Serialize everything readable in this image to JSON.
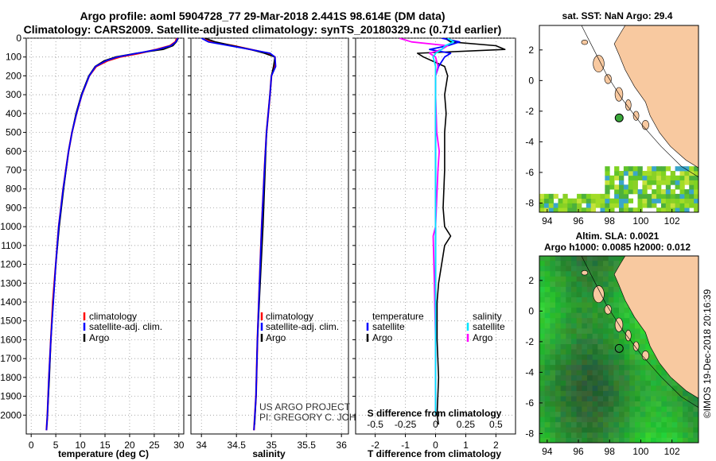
{
  "header": {
    "title_line1": "Argo profile: aoml 5904728_77 29-Mar-2018 2.441S 98.614E (DM data)",
    "title_line2": "Climatology: CARS2009. Satellite-adjusted climatology: synTS_20180329.nc (0.71d earlier)"
  },
  "colors": {
    "climatology": "#ff0000",
    "satellite": "#0000ff",
    "argo": "#000000",
    "sal_satellite": "#00e5ff",
    "sal_argo": "#ff00ff",
    "land": "#f8c9a0"
  },
  "chart_data": [
    {
      "type": "line",
      "id": "temperature",
      "xlabel": "temperature (deg C)",
      "ylabel": "",
      "xlim": [
        -1,
        31
      ],
      "ylim": [
        2100,
        0
      ],
      "xticks": [
        0,
        5,
        10,
        15,
        20,
        25,
        30
      ],
      "yticks": [
        0,
        100,
        200,
        300,
        400,
        500,
        600,
        700,
        800,
        900,
        1000,
        1100,
        1200,
        1300,
        1400,
        1500,
        1600,
        1700,
        1800,
        1900,
        2000
      ],
      "legend": [
        "climatology",
        "satellite-adj. clim.",
        "Argo"
      ],
      "series": [
        {
          "name": "climatology",
          "depth": [
            0,
            20,
            40,
            60,
            80,
            100,
            120,
            150,
            200,
            300,
            400,
            500,
            600,
            800,
            1000,
            1200,
            1400,
            1600,
            1800,
            2000,
            2080
          ],
          "values": [
            29.6,
            29.3,
            28.2,
            25.5,
            22.0,
            18.0,
            15.5,
            13.2,
            11.8,
            10.3,
            9.2,
            8.3,
            7.6,
            6.5,
            5.6,
            5.0,
            4.4,
            4.0,
            3.6,
            3.3,
            3.1
          ]
        },
        {
          "name": "satellite",
          "depth": [
            0,
            20,
            40,
            60,
            80,
            100,
            120,
            150,
            200,
            300,
            400,
            500,
            600,
            800,
            1000,
            1200,
            1400,
            1600,
            1800,
            2000,
            2080
          ],
          "values": [
            29.8,
            29.4,
            28.4,
            25.7,
            21.5,
            17.5,
            15.2,
            13.1,
            11.8,
            10.3,
            9.2,
            8.3,
            7.6,
            6.5,
            5.6,
            5.0,
            4.5,
            4.0,
            3.6,
            3.3,
            3.1
          ]
        },
        {
          "name": "argo",
          "depth": [
            0,
            20,
            40,
            60,
            80,
            100,
            120,
            150,
            200,
            300,
            400,
            500,
            600,
            800,
            1000,
            1200,
            1400,
            1600,
            1800,
            2000,
            2050
          ],
          "values": [
            29.9,
            29.5,
            28.8,
            26.8,
            21.3,
            17.1,
            14.8,
            13.0,
            11.7,
            10.2,
            9.1,
            8.3,
            7.6,
            6.6,
            5.7,
            5.0,
            4.5,
            4.0,
            3.7,
            3.3,
            3.2
          ]
        }
      ]
    },
    {
      "type": "line",
      "id": "salinity",
      "xlabel": "salinity",
      "xlim": [
        33.85,
        36.1
      ],
      "ylim": [
        2100,
        0
      ],
      "xticks": [
        34,
        34.5,
        35,
        35.5,
        36
      ],
      "legend": [
        "climatology",
        "satellite-adj. clim.",
        "Argo"
      ],
      "series": [
        {
          "name": "climatology",
          "depth": [
            0,
            20,
            40,
            60,
            80,
            100,
            150,
            200,
            300,
            500,
            700,
            1000,
            1300,
            1600,
            1900,
            2080
          ],
          "values": [
            34.05,
            34.15,
            34.45,
            34.7,
            34.95,
            35.05,
            35.05,
            35.0,
            34.98,
            34.93,
            34.9,
            34.86,
            34.83,
            34.8,
            34.78,
            34.75
          ]
        },
        {
          "name": "satellite",
          "depth": [
            0,
            20,
            40,
            60,
            80,
            100,
            150,
            200,
            300,
            500,
            700,
            1000,
            1300,
            1600,
            1900,
            2080
          ],
          "values": [
            34.0,
            34.1,
            34.4,
            34.7,
            34.98,
            35.05,
            35.06,
            35.0,
            34.98,
            34.93,
            34.9,
            34.86,
            34.83,
            34.8,
            34.78,
            34.75
          ]
        },
        {
          "name": "argo",
          "depth": [
            0,
            20,
            40,
            60,
            80,
            90,
            100,
            150,
            200,
            300,
            500,
            700,
            1000,
            1300,
            1600,
            1900,
            2050
          ],
          "values": [
            34.05,
            34.2,
            34.45,
            34.7,
            34.9,
            34.97,
            35.05,
            35.03,
            35.0,
            34.98,
            34.93,
            34.91,
            34.88,
            34.84,
            34.8,
            34.78,
            34.76
          ]
        }
      ]
    },
    {
      "type": "line",
      "id": "difference",
      "xlabel": "T difference from climatology",
      "xlabel_top": "S difference from climatology",
      "xlim": [
        -2.65,
        2.65
      ],
      "xticks": [
        -2,
        -1,
        0,
        1,
        2
      ],
      "xticks_s": [
        "-0.5",
        "-0.25",
        "0",
        "0.25",
        "0.5"
      ],
      "ylim": [
        2100,
        0
      ],
      "legend_left_title": "temperature",
      "legend_right_title": "salinity",
      "legend_left": [
        "satellite",
        "Argo"
      ],
      "legend_right": [
        "satellite",
        "Argo"
      ],
      "series": [
        {
          "name": "T satellite",
          "depth": [
            0,
            20,
            40,
            60,
            80,
            100,
            150,
            200,
            400,
            800,
            1200,
            1600,
            2000
          ],
          "values": [
            0.2,
            0.8,
            0.4,
            -0.2,
            0.5,
            0.3,
            0.1,
            0.0,
            0.0,
            0.0,
            0.0,
            0.0,
            0.0
          ]
        },
        {
          "name": "T Argo",
          "depth": [
            0,
            20,
            40,
            60,
            80,
            100,
            150,
            200,
            300,
            400,
            500,
            700,
            900,
            1000,
            1050,
            1100,
            1200,
            1300,
            1400,
            1600,
            1800,
            2000,
            2050
          ],
          "values": [
            0.3,
            0.5,
            2.0,
            2.3,
            -0.6,
            -0.4,
            0.3,
            0.4,
            0.3,
            0.35,
            0.3,
            0.3,
            0.25,
            0.3,
            0.5,
            0.3,
            0.2,
            0.1,
            0.05,
            0.05,
            0.1,
            0.05,
            0.1
          ]
        },
        {
          "name": "S satellite",
          "depth": [
            0,
            20,
            40,
            60,
            80,
            100,
            150,
            200,
            400,
            800,
            1200,
            1600,
            2000
          ],
          "values": [
            0.1,
            0.15,
            0.08,
            0.05,
            0.0,
            -0.02,
            0.0,
            0.0,
            0.0,
            0.0,
            0.0,
            0.0,
            0.0
          ]
        },
        {
          "name": "S Argo",
          "depth": [
            0,
            20,
            40,
            60,
            80,
            100,
            150,
            200,
            300,
            500,
            600,
            700,
            1000,
            1050,
            1300,
            1600,
            2000
          ],
          "values": [
            -0.3,
            -0.2,
            0.1,
            0.05,
            -0.05,
            0.0,
            0.02,
            0.0,
            0.0,
            0.01,
            0.03,
            0.02,
            0.0,
            -0.02,
            -0.01,
            0.0,
            0.0
          ]
        }
      ]
    },
    {
      "type": "heatmap",
      "id": "sst_map",
      "title": "sat. SST: NaN Argo: 29.4",
      "xlim": [
        93.5,
        103.7
      ],
      "ylim": [
        -8.6,
        3.6
      ],
      "xticks": [
        94,
        96,
        98,
        100,
        102
      ],
      "yticks": [
        -8,
        -6,
        -4,
        -2,
        0,
        2
      ],
      "argo_position": [
        98.614,
        -2.441
      ]
    },
    {
      "type": "heatmap",
      "id": "sla_map",
      "title_line1": "Altim. SLA: 0.0021",
      "title_line2": "Argo h1000: 0.0085 h2000: 0.012",
      "xlim": [
        93.5,
        103.7
      ],
      "ylim": [
        -8.6,
        3.6
      ],
      "xticks": [
        94,
        96,
        98,
        100,
        102
      ],
      "yticks": [
        -8,
        -6,
        -4,
        -2,
        0,
        2
      ],
      "argo_position": [
        98.614,
        -2.441
      ]
    }
  ],
  "credits": {
    "project_line1": "US ARGO PROJECT",
    "project_line2": "PI: GREGORY C. JOHNSON",
    "imos_stamp": "©IMOS 19-Dec-2018 20:16:39"
  }
}
